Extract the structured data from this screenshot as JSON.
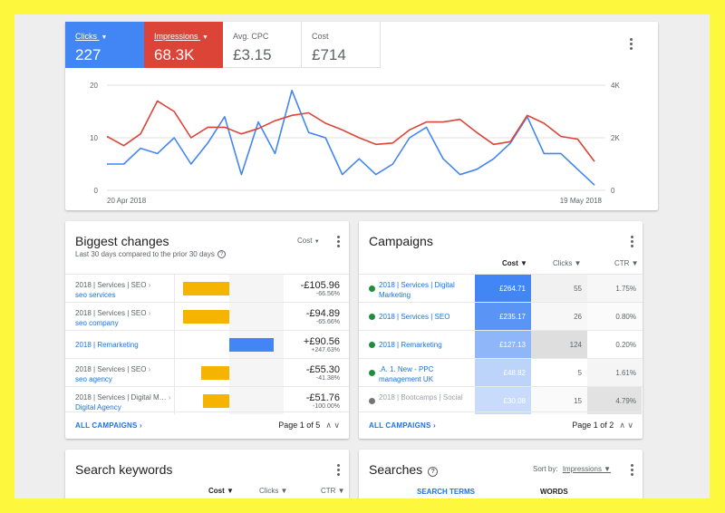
{
  "colors": {
    "blue": "#4285f4",
    "red": "#db4437",
    "amber": "#f4b400",
    "green": "#1e8e3e",
    "link": "#1a73e8"
  },
  "scorecards": [
    {
      "label": "Clicks",
      "value": "227",
      "caret": "▼"
    },
    {
      "label": "Impressions",
      "value": "68.3K",
      "caret": "▼"
    },
    {
      "label": "Avg. CPC",
      "value": "£3.15"
    },
    {
      "label": "Cost",
      "value": "£714"
    }
  ],
  "chart_data": {
    "type": "line",
    "x_labels": [
      "20 Apr 2018",
      "19 May 2018"
    ],
    "y_left_ticks": [
      "20",
      "10",
      "0"
    ],
    "y_right_ticks": [
      "4K",
      "2K",
      "0"
    ],
    "ylim_left": [
      0,
      20
    ],
    "ylim_right": [
      0,
      4000
    ],
    "grid": true,
    "series": [
      {
        "name": "Clicks",
        "axis": "left",
        "color": "#4285f4",
        "values": [
          5,
          5,
          8,
          7,
          10,
          5,
          9,
          14,
          3,
          13,
          7,
          19,
          11,
          10,
          3,
          6,
          3,
          5,
          10,
          12,
          6,
          3,
          4,
          6,
          9,
          14,
          7,
          7,
          4,
          1
        ]
      },
      {
        "name": "Impressions",
        "axis": "right",
        "color": "#db4437",
        "values": [
          2050,
          1700,
          2150,
          3400,
          3000,
          2000,
          2400,
          2400,
          2150,
          2350,
          2650,
          2850,
          2950,
          2550,
          2300,
          2000,
          1750,
          1800,
          2300,
          2600,
          2600,
          2700,
          2200,
          1750,
          1850,
          2850,
          2550,
          2050,
          1950,
          1100
        ]
      }
    ]
  },
  "biggest_changes": {
    "title": "Biggest changes",
    "subtitle": "Last 30 days compared to the prior 30 days",
    "help": "?",
    "metric": "Cost",
    "caret": "▼",
    "rows": [
      {
        "campaign": "2018 | Services | SEO",
        "sep": "›",
        "adgroup": "seo services",
        "value": "-£105.96",
        "change": "-66.56%",
        "fraction": -0.85
      },
      {
        "campaign": "2018 | Services | SEO",
        "sep": "›",
        "adgroup": "seo company",
        "value": "-£94.89",
        "change": "-65.66%",
        "fraction": -0.85
      },
      {
        "campaign": "",
        "sep": "",
        "adgroup": "2018 | Remarketing",
        "value": "+£90.56",
        "change": "+247.63%",
        "fraction": 0.82
      },
      {
        "campaign": "2018 | Services | SEO",
        "sep": "›",
        "adgroup": "seo agency",
        "value": "-£55.30",
        "change": "-41.38%",
        "fraction": -0.52
      },
      {
        "campaign": "2018 | Services | Digital M…",
        "sep": "›",
        "adgroup": "Digital Agency",
        "value": "-£51.76",
        "change": "-100.00%",
        "fraction": -0.48
      }
    ],
    "footer_link": "ALL CAMPAIGNS ›",
    "page": "Page 1 of 5",
    "arrows": "∧  ∨"
  },
  "campaigns": {
    "title": "Campaigns",
    "columns": [
      "Cost ▼",
      "Clicks ▼",
      "CTR ▼"
    ],
    "rows": [
      {
        "name": "2018 | Services | Digital Marketing",
        "status": "enabled",
        "cost": "£264.71",
        "clicks": "55",
        "ctr": "1.75%",
        "cost_shade": "#4285f4",
        "clicks_shade": "#f1f1f1",
        "ctr_shade": "#f7f7f7"
      },
      {
        "name": "2018 | Services | SEO",
        "status": "enabled",
        "cost": "£235.17",
        "clicks": "26",
        "ctr": "0.80%",
        "cost_shade": "#5a94f5",
        "clicks_shade": "#f7f7f7",
        "ctr_shade": "#fbfbfb"
      },
      {
        "name": "2018 | Remarketing",
        "status": "enabled",
        "cost": "£127.13",
        "clicks": "124",
        "ctr": "0.20%",
        "cost_shade": "#8fb6f8",
        "clicks_shade": "#dedede",
        "ctr_shade": "#ffffff"
      },
      {
        "name": ".A. 1. New - PPC management UK",
        "status": "enabled",
        "cost": "£48.82",
        "clicks": "5",
        "ctr": "1.61%",
        "cost_shade": "#bcd3fa",
        "clicks_shade": "#ffffff",
        "ctr_shade": "#f5f5f5"
      },
      {
        "name": "2018 | Bootcamps | Social",
        "status": "removed",
        "cost": "£30.08",
        "clicks": "15",
        "ctr": "4.79%",
        "cost_shade": "#c8dbfb",
        "clicks_shade": "#fafafa",
        "ctr_shade": "#e2e2e2"
      }
    ],
    "footer_link": "ALL CAMPAIGNS ›",
    "page": "Page 1 of 2",
    "arrows": "∧  ∨"
  },
  "search_keywords": {
    "title": "Search keywords",
    "columns": [
      "Cost ▼",
      "Clicks ▼",
      "CTR ▼"
    ]
  },
  "searches": {
    "title": "Searches",
    "help": "?",
    "sort_label": "Sort by:",
    "sort_value": "Impressions ▼",
    "tabs": [
      "SEARCH TERMS",
      "WORDS"
    ]
  }
}
